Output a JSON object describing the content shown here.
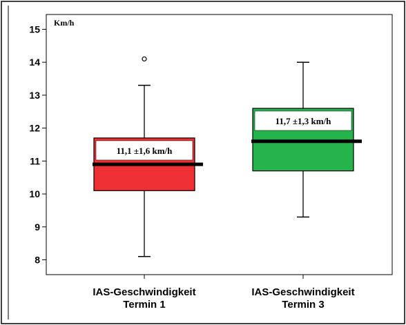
{
  "chart_data": {
    "type": "box",
    "unit_label": "Km/h",
    "yticks": [
      8,
      9,
      10,
      11,
      12,
      13,
      14,
      15
    ],
    "ylim": [
      7.55,
      15.45
    ],
    "categories": [
      {
        "line1": "IAS-Geschwindigkeit",
        "line2": "Termin 1",
        "whisker_low": 8.1,
        "q1": 10.1,
        "median": 10.9,
        "q3": 11.7,
        "whisker_high": 13.3,
        "outliers": [
          14.1
        ],
        "annotation": "11,1 ±1,6 km/h",
        "color": "#ee3035"
      },
      {
        "line1": "IAS-Geschwindigkeit",
        "line2": "Termin 3",
        "whisker_low": 9.3,
        "q1": 10.7,
        "median": 11.6,
        "q3": 12.6,
        "whisker_high": 14.0,
        "outliers": [],
        "annotation": "11,7 ±1,3 km/h",
        "color": "#25b34b"
      }
    ]
  }
}
